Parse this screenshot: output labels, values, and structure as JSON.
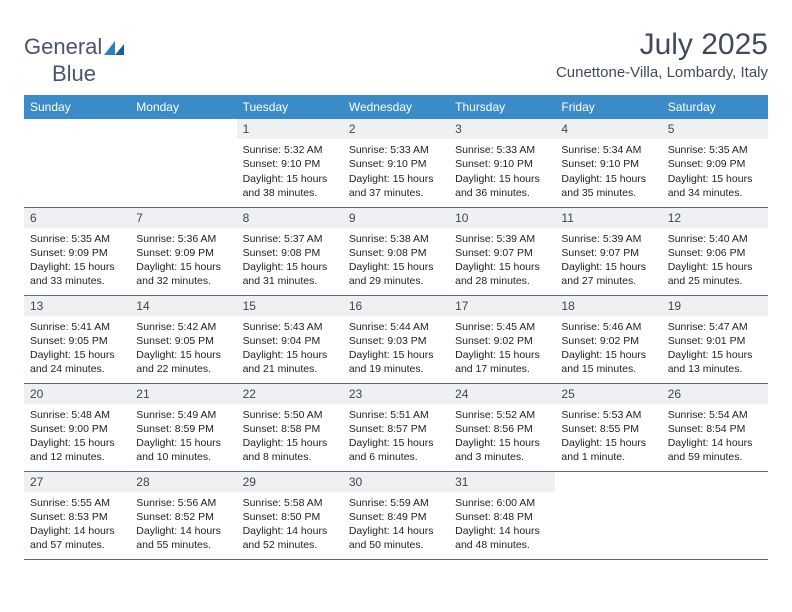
{
  "brand": {
    "word1": "General",
    "word2": "Blue"
  },
  "title": "July 2025",
  "location": "Cunettone-Villa, Lombardy, Italy",
  "colors": {
    "header_bg": "#3b8bc9",
    "header_text": "#ffffff",
    "daynum_bg": "#eef0f2",
    "daynum_text": "#3d4654",
    "border": "#5a6b82",
    "title_text": "#404a59",
    "body_text": "#222222",
    "logo_text": "#4a5568",
    "logo_mark": "#2f7cc0"
  },
  "weekdays": [
    "Sunday",
    "Monday",
    "Tuesday",
    "Wednesday",
    "Thursday",
    "Friday",
    "Saturday"
  ],
  "first_weekday_index": 2,
  "days": [
    {
      "n": 1,
      "sunrise": "5:32 AM",
      "sunset": "9:10 PM",
      "daylight": "15 hours and 38 minutes."
    },
    {
      "n": 2,
      "sunrise": "5:33 AM",
      "sunset": "9:10 PM",
      "daylight": "15 hours and 37 minutes."
    },
    {
      "n": 3,
      "sunrise": "5:33 AM",
      "sunset": "9:10 PM",
      "daylight": "15 hours and 36 minutes."
    },
    {
      "n": 4,
      "sunrise": "5:34 AM",
      "sunset": "9:10 PM",
      "daylight": "15 hours and 35 minutes."
    },
    {
      "n": 5,
      "sunrise": "5:35 AM",
      "sunset": "9:09 PM",
      "daylight": "15 hours and 34 minutes."
    },
    {
      "n": 6,
      "sunrise": "5:35 AM",
      "sunset": "9:09 PM",
      "daylight": "15 hours and 33 minutes."
    },
    {
      "n": 7,
      "sunrise": "5:36 AM",
      "sunset": "9:09 PM",
      "daylight": "15 hours and 32 minutes."
    },
    {
      "n": 8,
      "sunrise": "5:37 AM",
      "sunset": "9:08 PM",
      "daylight": "15 hours and 31 minutes."
    },
    {
      "n": 9,
      "sunrise": "5:38 AM",
      "sunset": "9:08 PM",
      "daylight": "15 hours and 29 minutes."
    },
    {
      "n": 10,
      "sunrise": "5:39 AM",
      "sunset": "9:07 PM",
      "daylight": "15 hours and 28 minutes."
    },
    {
      "n": 11,
      "sunrise": "5:39 AM",
      "sunset": "9:07 PM",
      "daylight": "15 hours and 27 minutes."
    },
    {
      "n": 12,
      "sunrise": "5:40 AM",
      "sunset": "9:06 PM",
      "daylight": "15 hours and 25 minutes."
    },
    {
      "n": 13,
      "sunrise": "5:41 AM",
      "sunset": "9:05 PM",
      "daylight": "15 hours and 24 minutes."
    },
    {
      "n": 14,
      "sunrise": "5:42 AM",
      "sunset": "9:05 PM",
      "daylight": "15 hours and 22 minutes."
    },
    {
      "n": 15,
      "sunrise": "5:43 AM",
      "sunset": "9:04 PM",
      "daylight": "15 hours and 21 minutes."
    },
    {
      "n": 16,
      "sunrise": "5:44 AM",
      "sunset": "9:03 PM",
      "daylight": "15 hours and 19 minutes."
    },
    {
      "n": 17,
      "sunrise": "5:45 AM",
      "sunset": "9:02 PM",
      "daylight": "15 hours and 17 minutes."
    },
    {
      "n": 18,
      "sunrise": "5:46 AM",
      "sunset": "9:02 PM",
      "daylight": "15 hours and 15 minutes."
    },
    {
      "n": 19,
      "sunrise": "5:47 AM",
      "sunset": "9:01 PM",
      "daylight": "15 hours and 13 minutes."
    },
    {
      "n": 20,
      "sunrise": "5:48 AM",
      "sunset": "9:00 PM",
      "daylight": "15 hours and 12 minutes."
    },
    {
      "n": 21,
      "sunrise": "5:49 AM",
      "sunset": "8:59 PM",
      "daylight": "15 hours and 10 minutes."
    },
    {
      "n": 22,
      "sunrise": "5:50 AM",
      "sunset": "8:58 PM",
      "daylight": "15 hours and 8 minutes."
    },
    {
      "n": 23,
      "sunrise": "5:51 AM",
      "sunset": "8:57 PM",
      "daylight": "15 hours and 6 minutes."
    },
    {
      "n": 24,
      "sunrise": "5:52 AM",
      "sunset": "8:56 PM",
      "daylight": "15 hours and 3 minutes."
    },
    {
      "n": 25,
      "sunrise": "5:53 AM",
      "sunset": "8:55 PM",
      "daylight": "15 hours and 1 minute."
    },
    {
      "n": 26,
      "sunrise": "5:54 AM",
      "sunset": "8:54 PM",
      "daylight": "14 hours and 59 minutes."
    },
    {
      "n": 27,
      "sunrise": "5:55 AM",
      "sunset": "8:53 PM",
      "daylight": "14 hours and 57 minutes."
    },
    {
      "n": 28,
      "sunrise": "5:56 AM",
      "sunset": "8:52 PM",
      "daylight": "14 hours and 55 minutes."
    },
    {
      "n": 29,
      "sunrise": "5:58 AM",
      "sunset": "8:50 PM",
      "daylight": "14 hours and 52 minutes."
    },
    {
      "n": 30,
      "sunrise": "5:59 AM",
      "sunset": "8:49 PM",
      "daylight": "14 hours and 50 minutes."
    },
    {
      "n": 31,
      "sunrise": "6:00 AM",
      "sunset": "8:48 PM",
      "daylight": "14 hours and 48 minutes."
    }
  ],
  "labels": {
    "sunrise": "Sunrise:",
    "sunset": "Sunset:",
    "daylight": "Daylight:"
  }
}
